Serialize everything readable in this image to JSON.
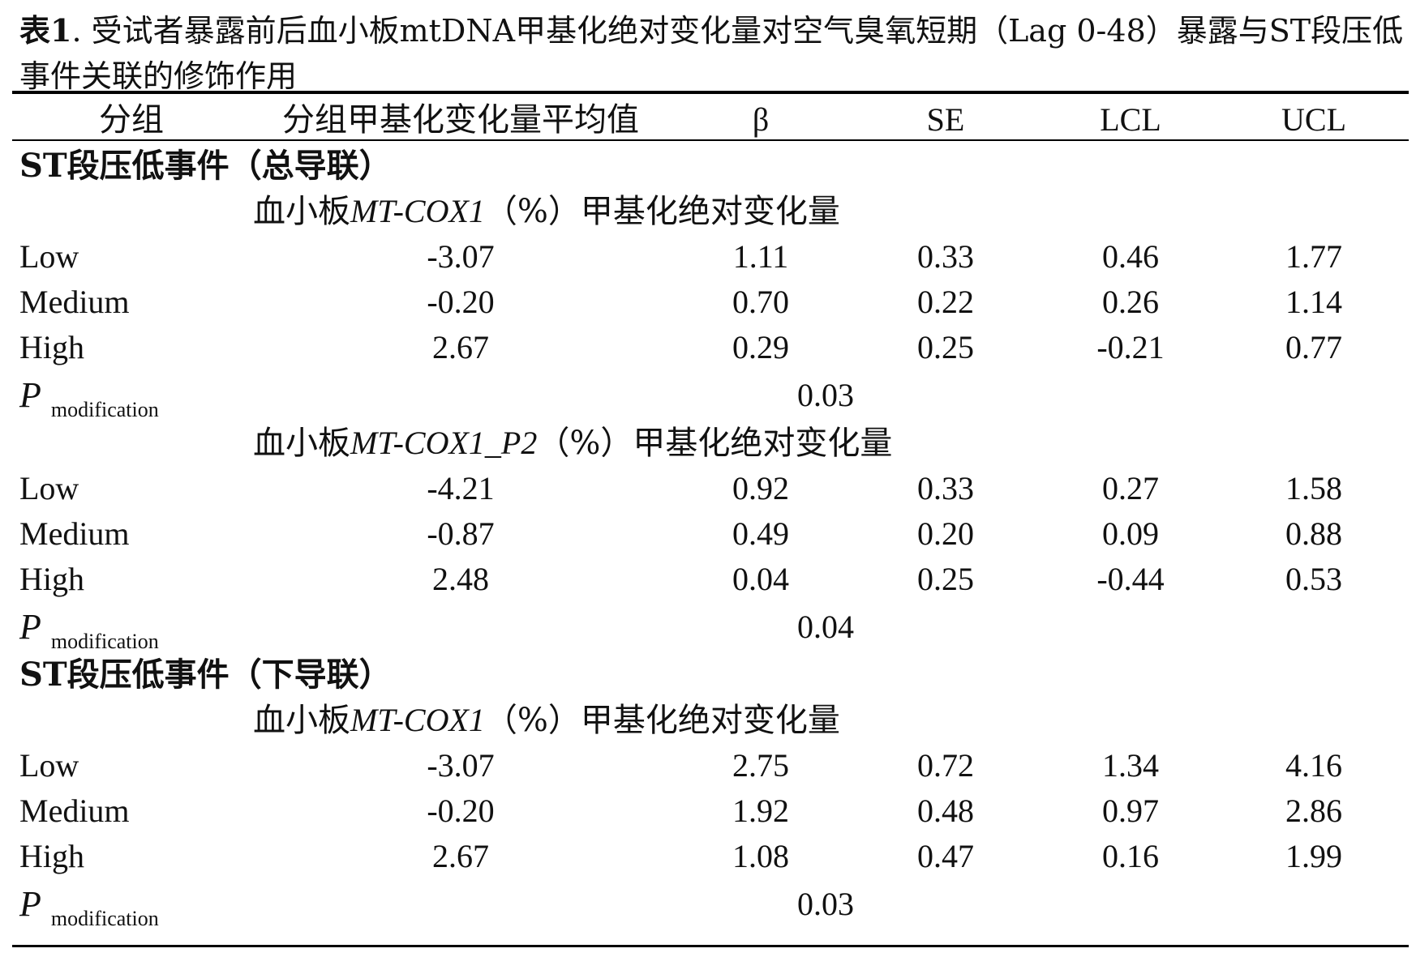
{
  "caption": {
    "label": "表1",
    "text": ". 受试者暴露前后血小板mtDNA甲基化绝对变化量对空气臭氧短期（Lag 0-48）暴露与ST段压低事件关联的修饰作用"
  },
  "columns": [
    "分组",
    "分组甲基化变化量平均值",
    "β",
    "SE",
    "LCL",
    "UCL"
  ],
  "p_label": {
    "symbol": "P",
    "subscript": "modification"
  },
  "sections": [
    {
      "title": "ST段压低事件（总导联）",
      "blocks": [
        {
          "prefix": "血小板",
          "gene": "MT-COX1",
          "suffix": "（%）甲基化绝对变化量",
          "rows": [
            {
              "group": "Low",
              "mean": "-3.07",
              "beta": "1.11",
              "se": "0.33",
              "lcl": "0.46",
              "ucl": "1.77"
            },
            {
              "group": "Medium",
              "mean": "-0.20",
              "beta": "0.70",
              "se": "0.22",
              "lcl": "0.26",
              "ucl": "1.14"
            },
            {
              "group": "High",
              "mean": "2.67",
              "beta": "0.29",
              "se": "0.25",
              "lcl": "-0.21",
              "ucl": "0.77"
            }
          ],
          "p_value": "0.03"
        },
        {
          "prefix": "血小板",
          "gene": "MT-COX1_P2",
          "suffix": "（%）甲基化绝对变化量",
          "rows": [
            {
              "group": "Low",
              "mean": "-4.21",
              "beta": "0.92",
              "se": "0.33",
              "lcl": "0.27",
              "ucl": "1.58"
            },
            {
              "group": "Medium",
              "mean": "-0.87",
              "beta": "0.49",
              "se": "0.20",
              "lcl": "0.09",
              "ucl": "0.88"
            },
            {
              "group": "High",
              "mean": "2.48",
              "beta": "0.04",
              "se": "0.25",
              "lcl": "-0.44",
              "ucl": "0.53"
            }
          ],
          "p_value": "0.04"
        }
      ]
    },
    {
      "title": "ST段压低事件（下导联）",
      "blocks": [
        {
          "prefix": "血小板",
          "gene": "MT-COX1",
          "suffix": "（%）甲基化绝对变化量",
          "rows": [
            {
              "group": "Low",
              "mean": "-3.07",
              "beta": "2.75",
              "se": "0.72",
              "lcl": "1.34",
              "ucl": "4.16"
            },
            {
              "group": "Medium",
              "mean": "-0.20",
              "beta": "1.92",
              "se": "0.48",
              "lcl": "0.97",
              "ucl": "2.86"
            },
            {
              "group": "High",
              "mean": "2.67",
              "beta": "1.08",
              "se": "0.47",
              "lcl": "0.16",
              "ucl": "1.99"
            }
          ],
          "p_value": "0.03"
        }
      ]
    }
  ]
}
